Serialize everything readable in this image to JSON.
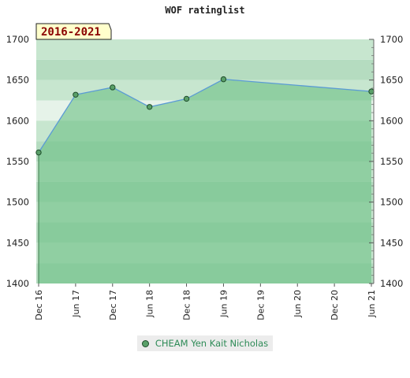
{
  "chart_data": {
    "type": "area",
    "title": "WOF ratinglist",
    "badge": "2016-2021",
    "ylim": [
      1400,
      1700
    ],
    "yticks": [
      1400,
      1450,
      1500,
      1550,
      1600,
      1650,
      1700
    ],
    "xtick_labels": [
      "Dec 16",
      "Jun 17",
      "Dec 17",
      "Jun 18",
      "Dec 18",
      "Jun 19",
      "Dec 19",
      "Jun 20",
      "Dec 20",
      "Jun 21"
    ],
    "series": [
      {
        "name": "CHEAM Yen Kait Nicholas",
        "x": [
          "Dec 16",
          "Jun 17",
          "Dec 17",
          "Jun 18",
          "Dec 18",
          "Jun 19",
          "Jun 21"
        ],
        "values": [
          1561,
          1632,
          1641,
          1617,
          1627,
          1651,
          1636
        ]
      }
    ],
    "colors": {
      "line": "#5b9bd5",
      "fill": "#6abf83",
      "marker": "#5aa069",
      "legend_text": "#2e8b57",
      "badge_bg": "#ffffcc"
    },
    "grid": true,
    "legend_position": "bottom"
  }
}
